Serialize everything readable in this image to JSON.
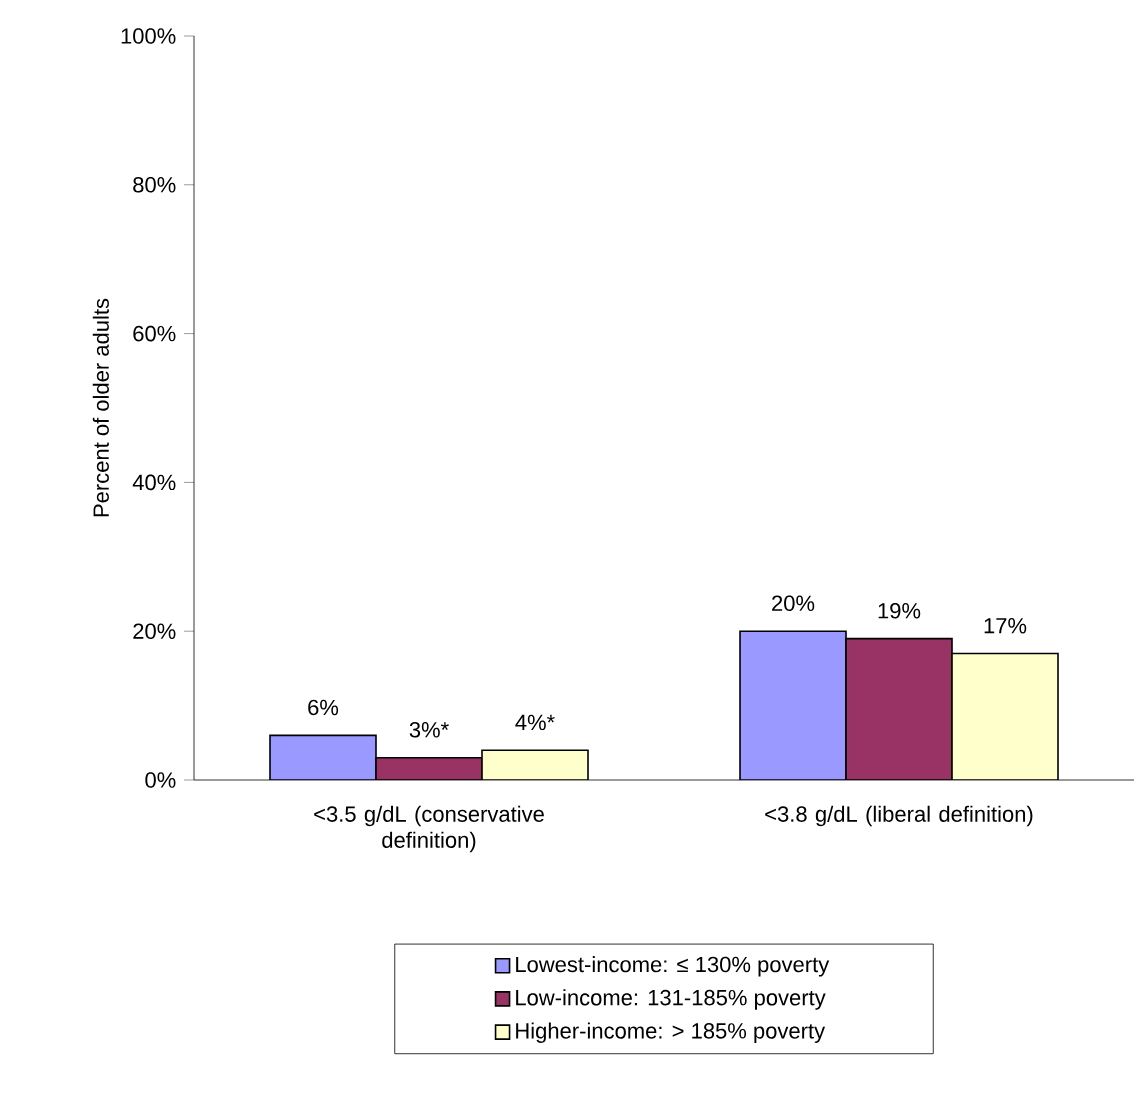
{
  "chart_data": {
    "type": "bar",
    "ylabel": "Percent of older adults",
    "categories": [
      "<3.5 g/dL (conservative definition)",
      "<3.8 g/dL (liberal definition)"
    ],
    "series": [
      {
        "name": "Lowest-income: ≤ 130% poverty",
        "color": "#9999ff",
        "values": [
          6,
          20
        ],
        "value_labels": [
          "6%",
          "20%"
        ]
      },
      {
        "name": "Low-income: 131-185% poverty",
        "color": "#993366",
        "values": [
          3,
          19
        ],
        "value_labels": [
          "3%*",
          "19%"
        ]
      },
      {
        "name": "Higher-income: > 185% poverty",
        "color": "#ffffcc",
        "values": [
          4,
          17
        ],
        "value_labels": [
          "4%*",
          "17%"
        ]
      }
    ],
    "ylim": [
      0,
      100
    ],
    "yticks": [
      {
        "value": 0,
        "label": "0%"
      },
      {
        "value": 20,
        "label": "20%"
      },
      {
        "value": 40,
        "label": "40%"
      },
      {
        "value": 60,
        "label": "60%"
      },
      {
        "value": 80,
        "label": "80%"
      },
      {
        "value": 100,
        "label": "100%"
      }
    ],
    "grid": false,
    "legend": "bottom"
  }
}
